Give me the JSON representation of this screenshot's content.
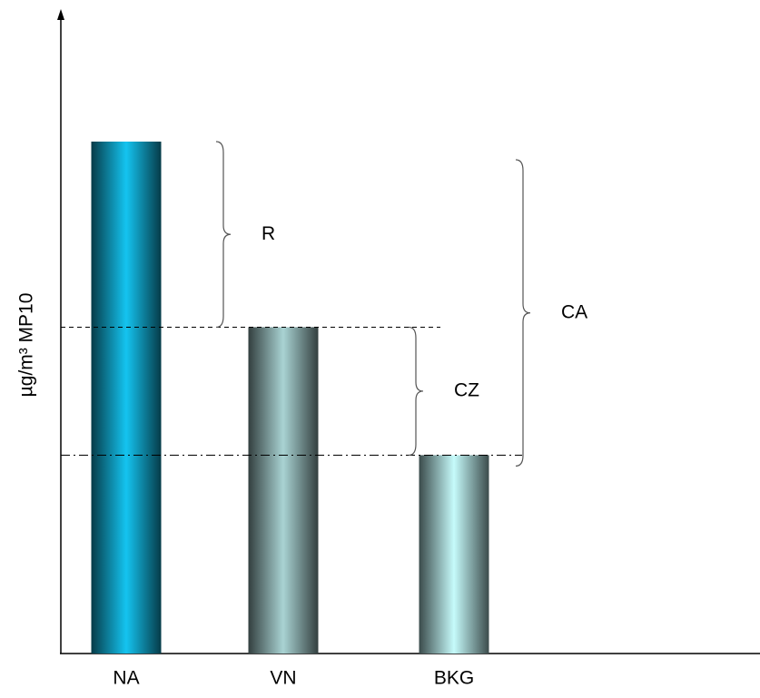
{
  "chart_data": {
    "type": "bar",
    "y_label": "µg/m³ MP10",
    "categories": [
      "NA",
      "VN",
      "BKG"
    ],
    "values": [
      80,
      51,
      31
    ],
    "colors": [
      "#14c4f0",
      "#a9d3d3",
      "#c6fbfb"
    ],
    "ylim": [
      0,
      100
    ],
    "annotations": [
      "R",
      "CZ",
      "CA"
    ]
  }
}
